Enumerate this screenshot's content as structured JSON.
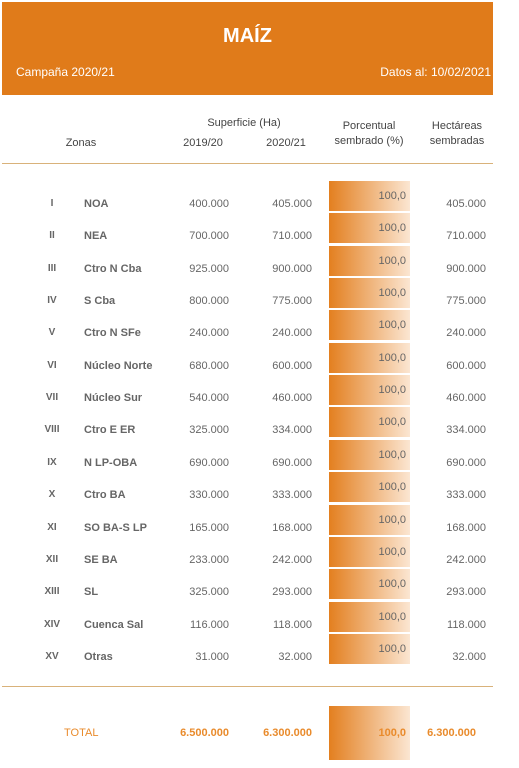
{
  "header": {
    "title": "MAÍZ",
    "campaign": "Campaña 2020/21",
    "date": "Datos al: 10/02/2021"
  },
  "table": {
    "columns": {
      "zones": "Zonas",
      "surface": "Superficie (Ha)",
      "season1": "2019/20",
      "season2": "2020/21",
      "percent": [
        "Porcentual",
        "sembrado (%)"
      ],
      "hectares": [
        "Hectáreas",
        "sembradas"
      ]
    },
    "rows": [
      [
        "I",
        "NOA",
        "400.000",
        "405.000",
        "100,0",
        "405.000"
      ],
      [
        "II",
        "NEA",
        "700.000",
        "710.000",
        "100,0",
        "710.000"
      ],
      [
        "III",
        "Ctro N Cba",
        "925.000",
        "900.000",
        "100,0",
        "900.000"
      ],
      [
        "IV",
        "S Cba",
        "800.000",
        "775.000",
        "100,0",
        "775.000"
      ],
      [
        "V",
        "Ctro N SFe",
        "240.000",
        "240.000",
        "100,0",
        "240.000"
      ],
      [
        "VI",
        "Núcleo Norte",
        "680.000",
        "600.000",
        "100,0",
        "600.000"
      ],
      [
        "VII",
        "Núcleo Sur",
        "540.000",
        "460.000",
        "100,0",
        "460.000"
      ],
      [
        "VIII",
        "Ctro E ER",
        "325.000",
        "334.000",
        "100,0",
        "334.000"
      ],
      [
        "IX",
        "N LP-OBA",
        "690.000",
        "690.000",
        "100,0",
        "690.000"
      ],
      [
        "X",
        "Ctro BA",
        "330.000",
        "333.000",
        "100,0",
        "333.000"
      ],
      [
        "XI",
        "SO BA-S LP",
        "165.000",
        "168.000",
        "100,0",
        "168.000"
      ],
      [
        "XII",
        "SE BA",
        "233.000",
        "242.000",
        "100,0",
        "242.000"
      ],
      [
        "XIII",
        "SL",
        "325.000",
        "293.000",
        "100,0",
        "293.000"
      ],
      [
        "XIV",
        "Cuenca Sal",
        "116.000",
        "118.000",
        "100,0",
        "118.000"
      ],
      [
        "XV",
        "Otras",
        "31.000",
        "32.000",
        "100,0",
        "32.000"
      ]
    ],
    "total": [
      "TOTAL",
      "6.500.000",
      "6.300.000",
      "100,0",
      "6.300.000"
    ]
  }
}
